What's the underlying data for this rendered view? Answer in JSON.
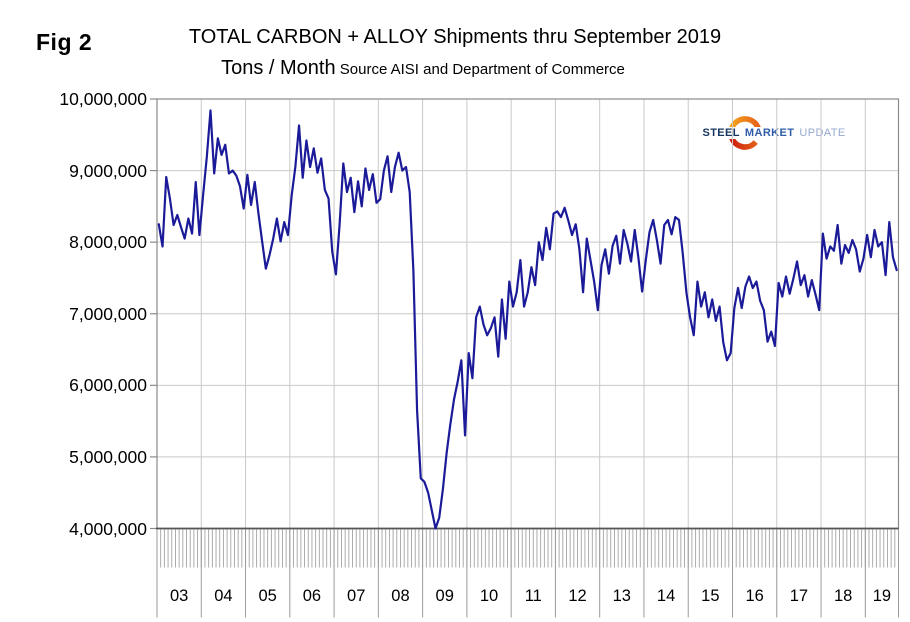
{
  "fig_label": "Fig 2",
  "title": "TOTAL CARBON + ALLOY Shipments thru September 2019",
  "subtitle": "Tons / Month",
  "source_note": "Source AISI and Department of Commerce",
  "logo": {
    "word1": "STEEL",
    "word2": "MARKET",
    "word3": "UPDATE",
    "navy": "#15355e",
    "blue": "#2f5da8",
    "light_blue": "#94a9cf",
    "swirl_orange": "#ef7d1e",
    "swirl_red": "#d02c10"
  },
  "colors": {
    "line": "#1b1b99",
    "grid": "#c9c9c9",
    "frame": "#8a8a8a",
    "axis": "#555555",
    "minor_tick": "#a3a3a3",
    "separator": "#9a9a9a"
  },
  "y_axis": {
    "tick_labels": [
      "10,000,000",
      "9,000,000",
      "8,000,000",
      "7,000,000",
      "6,000,000",
      "5,000,000",
      "4,000,000"
    ]
  },
  "x_axis": {
    "year_labels": [
      "03",
      "04",
      "05",
      "06",
      "07",
      "08",
      "09",
      "10",
      "11",
      "12",
      "13",
      "14",
      "15",
      "16",
      "17",
      "18",
      "19"
    ]
  },
  "chart_data": {
    "type": "line",
    "title": "TOTAL CARBON + ALLOY Shipments thru September 2019",
    "ylabel": "Tons / Month",
    "ylim_millions": [
      4,
      10
    ],
    "y_tick_step_millions": 1,
    "grid": true,
    "start": "2003-01",
    "end": "2019-09",
    "unit": "net tons per month (values in millions)",
    "series": [
      {
        "name": "Total Carbon + Alloy Steel Shipments",
        "monthly_values_millions": {
          "2003": [
            8.25,
            7.94,
            8.91,
            8.61,
            8.24,
            8.38,
            8.21,
            8.05,
            8.33,
            8.12,
            8.84,
            8.1
          ],
          "2004": [
            8.66,
            9.19,
            9.84,
            8.96,
            9.45,
            9.22,
            9.36,
            8.96,
            9.0,
            8.93,
            8.78,
            8.47
          ],
          "2005": [
            8.94,
            8.52,
            8.84,
            8.4,
            8.01,
            7.63,
            7.82,
            8.05,
            8.33,
            8.01,
            8.28,
            8.1
          ],
          "2006": [
            8.65,
            9.05,
            9.63,
            8.9,
            9.42,
            9.05,
            9.31,
            8.97,
            9.17,
            8.73,
            8.61,
            7.87
          ],
          "2007": [
            7.55,
            8.25,
            9.1,
            8.7,
            8.9,
            8.42,
            8.85,
            8.5,
            9.03,
            8.73,
            8.95,
            8.55
          ],
          "2008": [
            8.6,
            9.0,
            9.2,
            8.7,
            9.05,
            9.25,
            9.0,
            9.05,
            8.7,
            7.6,
            5.65,
            4.7
          ],
          "2009": [
            4.65,
            4.5,
            4.25,
            4.0,
            4.15,
            4.55,
            5.05,
            5.45,
            5.8,
            6.05,
            6.35,
            5.3
          ],
          "2010": [
            6.45,
            6.1,
            6.95,
            7.1,
            6.85,
            6.7,
            6.8,
            6.95,
            6.4,
            7.2,
            6.65,
            7.45
          ],
          "2011": [
            7.1,
            7.3,
            7.75,
            7.1,
            7.3,
            7.65,
            7.4,
            8.0,
            7.75,
            8.2,
            7.9,
            8.4
          ],
          "2012": [
            8.43,
            8.35,
            8.48,
            8.3,
            8.1,
            8.25,
            7.9,
            7.3,
            8.05,
            7.75,
            7.45,
            7.05
          ],
          "2013": [
            7.68,
            7.9,
            7.56,
            7.95,
            8.09,
            7.7,
            8.17,
            7.98,
            7.73,
            8.17,
            7.78,
            7.31
          ],
          "2014": [
            7.75,
            8.14,
            8.31,
            8.03,
            7.7,
            8.24,
            8.31,
            8.11,
            8.35,
            8.31,
            7.85,
            7.3
          ],
          "2015": [
            6.95,
            6.7,
            7.45,
            7.1,
            7.3,
            6.95,
            7.2,
            6.9,
            7.1,
            6.6,
            6.35,
            6.45
          ],
          "2016": [
            7.08,
            7.36,
            7.08,
            7.38,
            7.52,
            7.36,
            7.45,
            7.18,
            7.05,
            6.61,
            6.75,
            6.55
          ],
          "2017": [
            7.43,
            7.24,
            7.52,
            7.28,
            7.49,
            7.73,
            7.4,
            7.54,
            7.24,
            7.47,
            7.27,
            7.05
          ],
          "2018": [
            8.12,
            7.77,
            7.94,
            7.88,
            8.24,
            7.7,
            7.96,
            7.85,
            8.03,
            7.9,
            7.59,
            7.77
          ],
          "2019": [
            8.1,
            7.79,
            8.17,
            7.94,
            8.0,
            7.54,
            8.28,
            7.79,
            7.61
          ]
        }
      }
    ]
  }
}
